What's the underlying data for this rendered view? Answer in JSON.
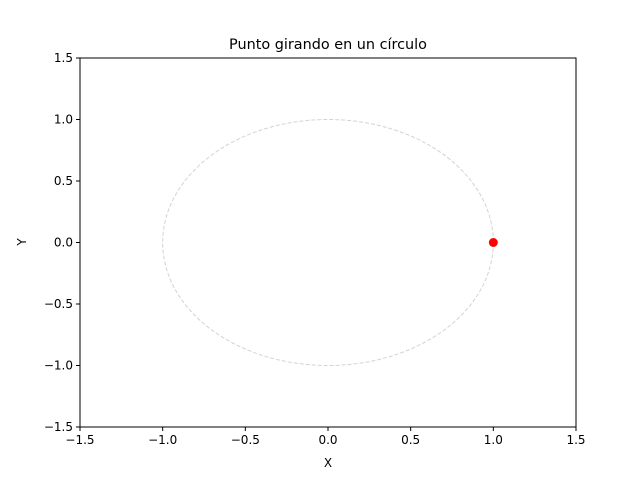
{
  "chart_data": {
    "type": "scatter",
    "title": "Punto girando en un círculo",
    "xlabel": "X",
    "ylabel": "Y",
    "xlim": [
      -1.5,
      1.5
    ],
    "ylim": [
      -1.5,
      1.5
    ],
    "grid": false,
    "xticks": [
      -1.5,
      -1.0,
      -0.5,
      0.0,
      0.5,
      1.0,
      1.5
    ],
    "xtick_labels": [
      "−1.5",
      "−1.0",
      "−0.5",
      "0.0",
      "0.5",
      "1.0",
      "1.5"
    ],
    "yticks": [
      -1.5,
      -1.0,
      -0.5,
      0.0,
      0.5,
      1.0,
      1.5
    ],
    "ytick_labels": [
      "−1.5",
      "−1.0",
      "−0.5",
      "0.0",
      "0.5",
      "1.0",
      "1.5"
    ],
    "circle": {
      "center": [
        0,
        0
      ],
      "radius": 1,
      "style": "dashed",
      "color": "#d3d3d3"
    },
    "points": [
      {
        "x": 1.0,
        "y": 0.0,
        "color": "#ff0000"
      }
    ]
  }
}
